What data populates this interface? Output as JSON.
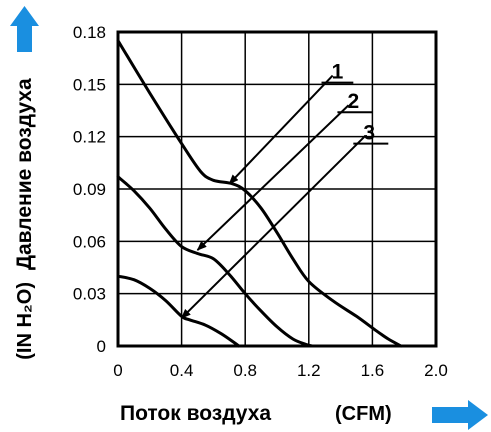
{
  "chart_data": {
    "type": "line",
    "xlabel": "Поток воздуха",
    "xunit": "(CFM)",
    "ylabel": "Давление воздуха",
    "yunit": "(IN H₂O)",
    "xlim": [
      0,
      2.0
    ],
    "ylim": [
      0,
      0.18
    ],
    "xticks": [
      0,
      0.4,
      0.8,
      1.2,
      1.6,
      2.0
    ],
    "xtick_labels": [
      "0",
      "0.4",
      "0.8",
      "1.2",
      "1.6",
      "2.0"
    ],
    "yticks": [
      0,
      0.03,
      0.06,
      0.09,
      0.12,
      0.15,
      0.18
    ],
    "ytick_labels": [
      "0",
      "0.03",
      "0.06",
      "0.09",
      "0.12",
      "0.15",
      "0.18"
    ],
    "grid": true,
    "accent_color": "#1a8fe0",
    "series": [
      {
        "name": "1",
        "x": [
          0,
          0.2,
          0.4,
          0.52,
          0.6,
          0.72,
          0.8,
          0.9,
          1.0,
          1.1,
          1.2,
          1.35,
          1.5,
          1.62,
          1.7,
          1.78
        ],
        "y": [
          0.175,
          0.145,
          0.116,
          0.1,
          0.095,
          0.093,
          0.089,
          0.079,
          0.065,
          0.05,
          0.037,
          0.026,
          0.017,
          0.009,
          0.004,
          0
        ]
      },
      {
        "name": "2",
        "x": [
          0,
          0.1,
          0.2,
          0.3,
          0.4,
          0.5,
          0.6,
          0.7,
          0.8,
          0.9,
          1.0,
          1.1,
          1.18,
          1.22
        ],
        "y": [
          0.097,
          0.089,
          0.079,
          0.067,
          0.057,
          0.053,
          0.05,
          0.041,
          0.03,
          0.02,
          0.011,
          0.004,
          0.001,
          0
        ]
      },
      {
        "name": "3",
        "x": [
          0,
          0.1,
          0.2,
          0.3,
          0.4,
          0.45,
          0.55,
          0.65,
          0.73,
          0.76
        ],
        "y": [
          0.04,
          0.038,
          0.033,
          0.026,
          0.017,
          0.015,
          0.012,
          0.007,
          0.002,
          0
        ]
      }
    ],
    "labels": [
      "1",
      "2",
      "3"
    ]
  }
}
